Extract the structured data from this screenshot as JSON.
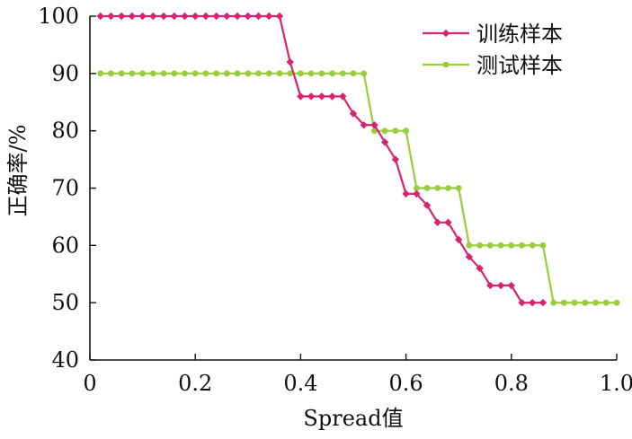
{
  "chart_data": {
    "type": "line",
    "title": "",
    "xlabel": "Spread值",
    "ylabel": "正确率/%",
    "xlim": [
      0,
      1.0
    ],
    "ylim": [
      40,
      100
    ],
    "xticks": [
      "0",
      "0.2",
      "0.4",
      "0.6",
      "0.8",
      "1.0"
    ],
    "xtick_values": [
      0,
      0.2,
      0.4,
      0.6,
      0.8,
      1.0
    ],
    "yticks": [
      "40",
      "50",
      "60",
      "70",
      "80",
      "90",
      "100"
    ],
    "ytick_values": [
      40,
      50,
      60,
      70,
      80,
      90,
      100
    ],
    "grid": false,
    "legend_position": "top-right",
    "series": [
      {
        "name": "训练样本",
        "color": "#d6246e",
        "marker": "diamond",
        "x": [
          0.02,
          0.04,
          0.06,
          0.08,
          0.1,
          0.12,
          0.14,
          0.16,
          0.18,
          0.2,
          0.22,
          0.24,
          0.26,
          0.28,
          0.3,
          0.32,
          0.34,
          0.36,
          0.38,
          0.4,
          0.42,
          0.44,
          0.46,
          0.48,
          0.5,
          0.52,
          0.54,
          0.56,
          0.58,
          0.6,
          0.62,
          0.64,
          0.66,
          0.68,
          0.7,
          0.72,
          0.74,
          0.76,
          0.78,
          0.8,
          0.82,
          0.84,
          0.86
        ],
        "y": [
          100,
          100,
          100,
          100,
          100,
          100,
          100,
          100,
          100,
          100,
          100,
          100,
          100,
          100,
          100,
          100,
          100,
          100,
          92,
          86,
          86,
          86,
          86,
          86,
          83,
          81,
          81,
          78,
          75,
          69,
          69,
          67,
          64,
          64,
          61,
          58,
          56,
          53,
          53,
          53,
          50,
          50,
          50
        ]
      },
      {
        "name": "测试样本",
        "color": "#9acd3c",
        "marker": "circle",
        "x": [
          0.02,
          0.04,
          0.06,
          0.08,
          0.1,
          0.12,
          0.14,
          0.16,
          0.18,
          0.2,
          0.22,
          0.24,
          0.26,
          0.28,
          0.3,
          0.32,
          0.34,
          0.36,
          0.38,
          0.4,
          0.42,
          0.44,
          0.46,
          0.48,
          0.5,
          0.52,
          0.54,
          0.56,
          0.58,
          0.6,
          0.62,
          0.64,
          0.66,
          0.68,
          0.7,
          0.72,
          0.74,
          0.76,
          0.78,
          0.8,
          0.82,
          0.84,
          0.86,
          0.88,
          0.9,
          0.92,
          0.94,
          0.96,
          0.98,
          1.0
        ],
        "y": [
          90,
          90,
          90,
          90,
          90,
          90,
          90,
          90,
          90,
          90,
          90,
          90,
          90,
          90,
          90,
          90,
          90,
          90,
          90,
          90,
          90,
          90,
          90,
          90,
          90,
          90,
          80,
          80,
          80,
          80,
          70,
          70,
          70,
          70,
          70,
          60,
          60,
          60,
          60,
          60,
          60,
          60,
          60,
          50,
          50,
          50,
          50,
          50,
          50,
          50
        ]
      }
    ]
  }
}
